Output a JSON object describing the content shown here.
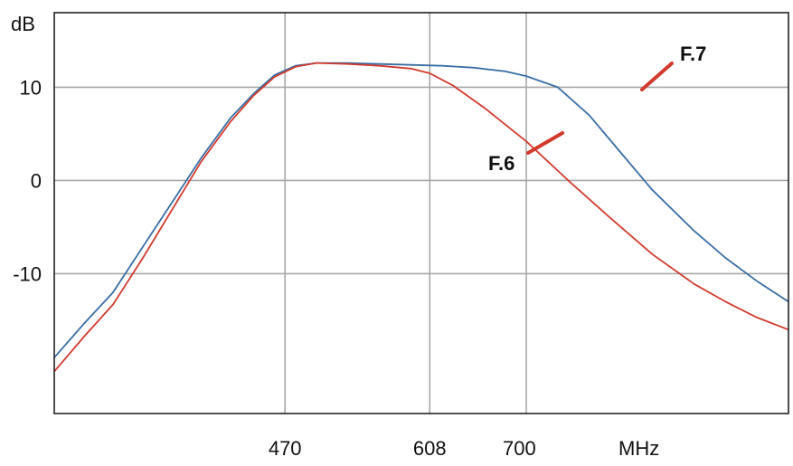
{
  "chart_data": {
    "type": "line",
    "title": "",
    "xlabel": "",
    "ylabel": "dB",
    "x_unit_label": "MHz",
    "xlim": [
      250,
      950
    ],
    "ylim": [
      -25,
      18
    ],
    "y_ticks": [
      10,
      0,
      -10
    ],
    "y_tick_labels": [
      "10",
      "0",
      "-10"
    ],
    "x_ticks": [
      470,
      608,
      700
    ],
    "x_tick_labels": [
      "470",
      "608",
      "700"
    ],
    "grid": true,
    "series": [
      {
        "name": "F.7",
        "color": "#3a6ea5",
        "x": [
          250,
          278,
          306,
          334,
          362,
          390,
          418,
          440,
          460,
          480,
          500,
          530,
          560,
          590,
          620,
          650,
          680,
          700,
          730,
          760,
          790,
          820,
          860,
          890,
          920,
          950
        ],
        "y": [
          -19,
          -15.4,
          -12,
          -7.2,
          -2.4,
          2.4,
          6.7,
          9.3,
          11.3,
          12.3,
          12.6,
          12.6,
          12.5,
          12.4,
          12.3,
          12.1,
          11.7,
          11.2,
          10,
          7,
          3,
          -1,
          -5.4,
          -8.3,
          -10.8,
          -13
        ]
      },
      {
        "name": "F.6",
        "color": "#d13b2e",
        "x": [
          250,
          278,
          306,
          334,
          362,
          390,
          418,
          440,
          460,
          480,
          500,
          530,
          560,
          590,
          608,
          630,
          660,
          700,
          740,
          780,
          820,
          860,
          890,
          920,
          950
        ],
        "y": [
          -20.5,
          -16.8,
          -13.3,
          -8.4,
          -3.2,
          2,
          6.3,
          9.1,
          11.1,
          12.2,
          12.6,
          12.5,
          12.3,
          12,
          11.5,
          10.2,
          7.8,
          4.2,
          0,
          -4,
          -7.9,
          -11.1,
          -13,
          -14.7,
          -16
        ]
      }
    ]
  }
}
